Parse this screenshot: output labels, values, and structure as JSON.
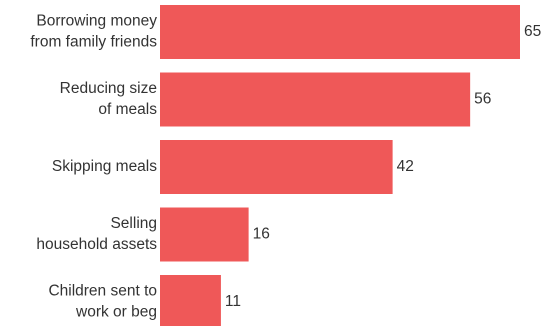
{
  "chart_data": {
    "type": "bar",
    "orientation": "horizontal",
    "categories": [
      [
        "Borrowing money",
        "from family friends"
      ],
      [
        "Reducing size",
        "of meals"
      ],
      [
        "Skipping meals"
      ],
      [
        "Selling",
        "household assets"
      ],
      [
        "Children sent to",
        "work or beg"
      ]
    ],
    "values": [
      65,
      56,
      42,
      16,
      11
    ],
    "color": "#ef5858"
  }
}
